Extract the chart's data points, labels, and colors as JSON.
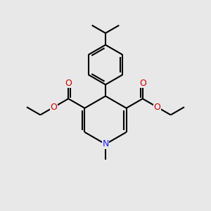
{
  "bg_color": "#e8e8e8",
  "bond_color": "#000000",
  "bond_width": 1.5,
  "N_color": "#1a1aff",
  "O_color": "#cc0000",
  "figsize": [
    3.0,
    3.0
  ],
  "dpi": 100,
  "xlim": [
    0,
    10
  ],
  "ylim": [
    0,
    10
  ]
}
